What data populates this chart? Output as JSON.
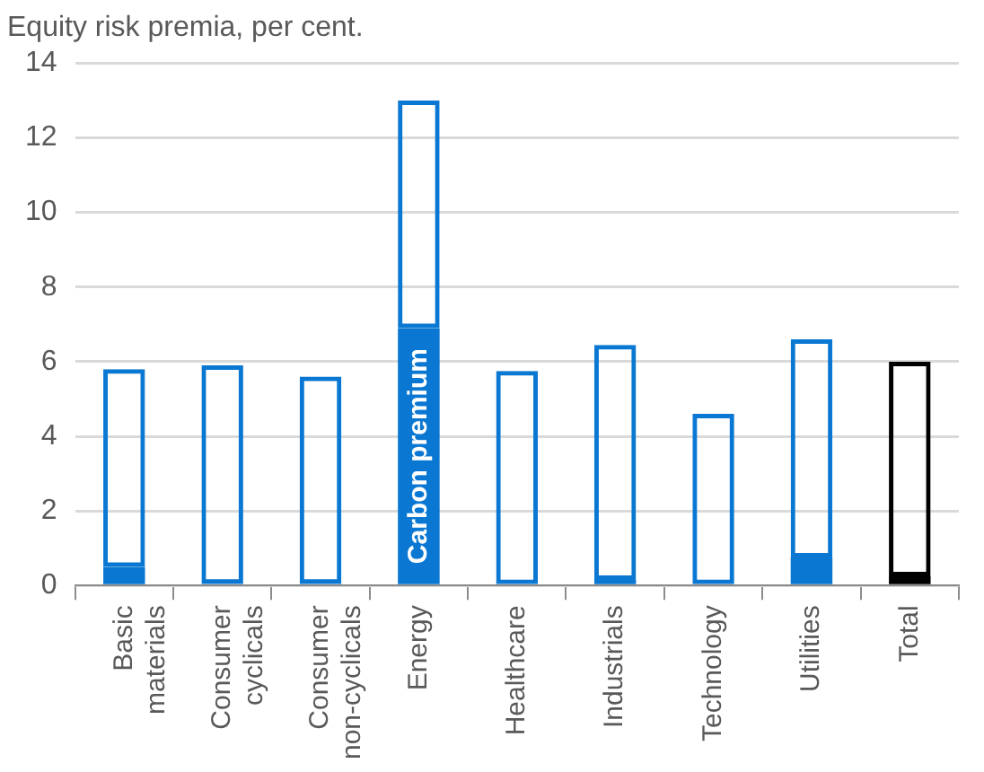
{
  "chart_data": {
    "type": "bar",
    "title": "Equity risk premia, per cent.",
    "categories": [
      "Basic materials",
      "Consumer cyclicals",
      "Consumer non-cyclicals",
      "Energy",
      "Healthcare",
      "Industrials",
      "Technology",
      "Utilities",
      "Total"
    ],
    "stacked": true,
    "series": [
      {
        "name": "Carbon premium",
        "colors": [
          "#0a78d2",
          "#0a78d2",
          "#0a78d2",
          "#0a78d2",
          "#0a78d2",
          "#0a78d2",
          "#0a78d2",
          "#0a78d2",
          "#000000"
        ],
        "values": [
          0.5,
          0.05,
          0.05,
          6.9,
          0,
          0.15,
          0,
          0.75,
          0.25
        ]
      },
      {
        "colors": [
          "#0a78d2",
          "#0a78d2",
          "#0a78d2",
          "#0a78d2",
          "#0a78d2",
          "#0a78d2",
          "#0a78d2",
          "#0a78d2",
          "#000000"
        ],
        "values": [
          5.3,
          5.85,
          5.55,
          6.1,
          5.75,
          6.3,
          4.6,
          5.85,
          5.75
        ]
      }
    ],
    "ylim": [
      0,
      14
    ],
    "yticks": [
      0,
      2,
      4,
      6,
      8,
      10,
      12,
      14
    ],
    "grid": "y",
    "legend": false
  }
}
